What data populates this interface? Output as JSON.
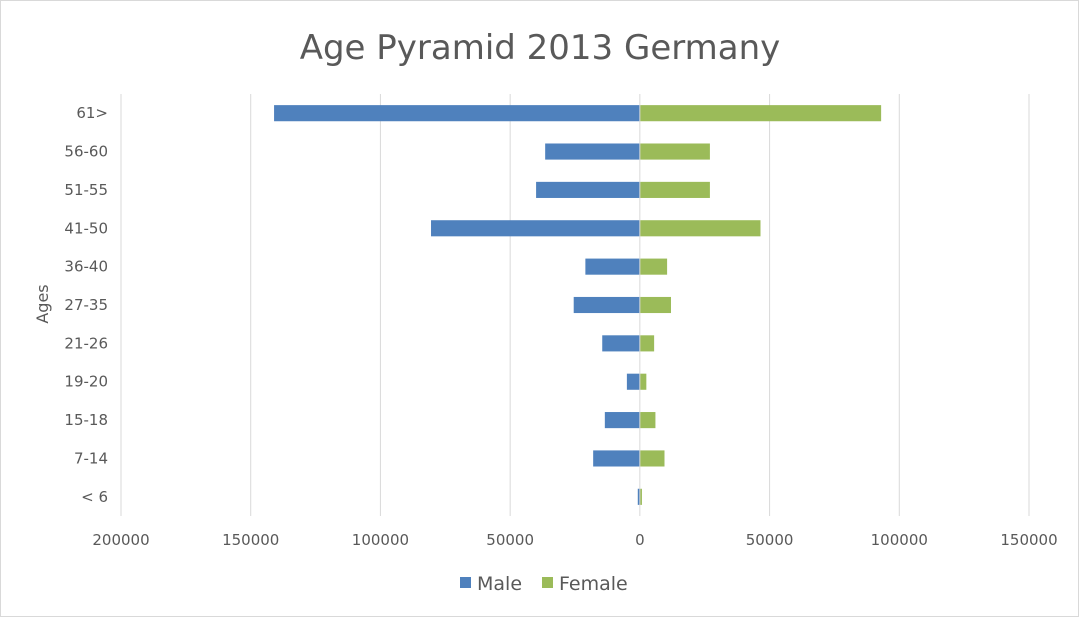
{
  "chart_data": {
    "type": "bar",
    "orientation": "horizontal",
    "title": "Age Pyramid 2013 Germany",
    "ylabel": "Ages",
    "xlabel": "",
    "categories": [
      "61>",
      "56-60",
      "51-55",
      "41-50",
      "36-40",
      "27-35",
      "21-26",
      "19-20",
      "15-18",
      "7-14",
      "< 6"
    ],
    "series": [
      {
        "name": "Male",
        "color": "#4f81bd",
        "values": [
          141000,
          36500,
          40000,
          80500,
          21000,
          25500,
          14500,
          5000,
          13500,
          18000,
          800
        ]
      },
      {
        "name": "Female",
        "color": "#9bbb59",
        "values": [
          93000,
          27000,
          27000,
          46500,
          10500,
          12000,
          5500,
          2500,
          6000,
          9500,
          800
        ]
      }
    ],
    "xlim": [
      -200000,
      150000
    ],
    "xticks": [
      -200000,
      -150000,
      -100000,
      -50000,
      0,
      50000,
      100000,
      150000
    ],
    "xtick_labels": [
      "200000",
      "150000",
      "100000",
      "50000",
      "0",
      "50000",
      "100000",
      "150000"
    ],
    "grid": "vertical",
    "legend_position": "bottom"
  }
}
